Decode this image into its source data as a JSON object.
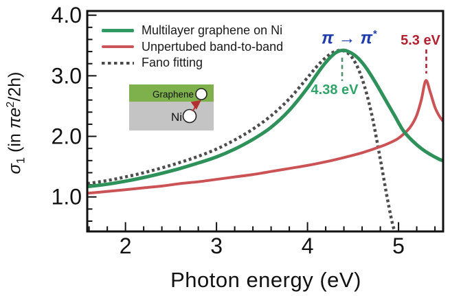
{
  "figure": {
    "background": "#ffffff",
    "frame_color": "#111111",
    "tick_color": "#111111",
    "text_color": "#111111"
  },
  "chart_data": {
    "type": "line",
    "title": "",
    "xlabel": "Photon energy (eV)",
    "ylabel": "σ1 (in πe2/2h)",
    "ylabel_parts": {
      "sigma": "σ",
      "sub": "1",
      "mid": " (in ",
      "pie": "πe",
      "sup": "2",
      "suffix": "/2h)"
    },
    "xlim": [
      1.58,
      5.49
    ],
    "ylim": [
      0.43,
      4.07
    ],
    "grid": false,
    "legend_position": "upper-left-inside",
    "x_major_ticks": [
      2,
      3,
      4,
      5
    ],
    "x_tick_labels": [
      "2",
      "3",
      "4",
      "5"
    ],
    "x_minor_step": 0.2,
    "y_major_ticks": [
      1,
      2,
      3,
      4
    ],
    "y_tick_labels": [
      "1.0",
      "2.0",
      "3.0",
      "4.0"
    ],
    "y_minor_step": 0.2,
    "series": [
      {
        "name": "Multilayer graphene on Ni",
        "color": "#2d9159",
        "style": "solid",
        "peak": {
          "x": 4.38,
          "y": 3.42
        },
        "points": [
          [
            1.58,
            1.17
          ],
          [
            1.8,
            1.21
          ],
          [
            2.0,
            1.26
          ],
          [
            2.2,
            1.32
          ],
          [
            2.4,
            1.39
          ],
          [
            2.6,
            1.47
          ],
          [
            2.8,
            1.56
          ],
          [
            3.0,
            1.66
          ],
          [
            3.2,
            1.79
          ],
          [
            3.4,
            1.95
          ],
          [
            3.6,
            2.15
          ],
          [
            3.8,
            2.43
          ],
          [
            4.0,
            2.8
          ],
          [
            4.1,
            3.02
          ],
          [
            4.2,
            3.22
          ],
          [
            4.3,
            3.37
          ],
          [
            4.38,
            3.42
          ],
          [
            4.45,
            3.4
          ],
          [
            4.55,
            3.3
          ],
          [
            4.65,
            3.12
          ],
          [
            4.75,
            2.88
          ],
          [
            4.85,
            2.62
          ],
          [
            4.95,
            2.36
          ],
          [
            5.05,
            2.1
          ],
          [
            5.15,
            1.93
          ],
          [
            5.25,
            1.8
          ],
          [
            5.35,
            1.7
          ],
          [
            5.45,
            1.62
          ],
          [
            5.49,
            1.6
          ]
        ]
      },
      {
        "name": "Unpertubed band-to-band",
        "color": "#cb5356",
        "style": "solid",
        "peak": {
          "x": 5.3,
          "y": 2.92
        },
        "points": [
          [
            1.58,
            1.06
          ],
          [
            1.8,
            1.09
          ],
          [
            2.0,
            1.12
          ],
          [
            2.2,
            1.15
          ],
          [
            2.4,
            1.18
          ],
          [
            2.6,
            1.22
          ],
          [
            2.8,
            1.25
          ],
          [
            3.0,
            1.29
          ],
          [
            3.2,
            1.33
          ],
          [
            3.4,
            1.37
          ],
          [
            3.6,
            1.42
          ],
          [
            3.8,
            1.47
          ],
          [
            4.0,
            1.52
          ],
          [
            4.2,
            1.58
          ],
          [
            4.4,
            1.65
          ],
          [
            4.6,
            1.73
          ],
          [
            4.8,
            1.83
          ],
          [
            4.9,
            1.89
          ],
          [
            5.0,
            1.97
          ],
          [
            5.1,
            2.1
          ],
          [
            5.15,
            2.2
          ],
          [
            5.2,
            2.35
          ],
          [
            5.25,
            2.6
          ],
          [
            5.3,
            2.92
          ],
          [
            5.35,
            2.72
          ],
          [
            5.4,
            2.48
          ],
          [
            5.45,
            2.33
          ],
          [
            5.49,
            2.25
          ]
        ]
      },
      {
        "name": "Fano fitting",
        "color": "#4d4d4d",
        "style": "dotted",
        "points": [
          [
            1.58,
            1.22
          ],
          [
            1.8,
            1.27
          ],
          [
            2.0,
            1.33
          ],
          [
            2.2,
            1.4
          ],
          [
            2.4,
            1.48
          ],
          [
            2.6,
            1.57
          ],
          [
            2.8,
            1.67
          ],
          [
            3.0,
            1.79
          ],
          [
            3.2,
            1.94
          ],
          [
            3.4,
            2.12
          ],
          [
            3.6,
            2.34
          ],
          [
            3.8,
            2.62
          ],
          [
            4.0,
            2.97
          ],
          [
            4.1,
            3.15
          ],
          [
            4.2,
            3.3
          ],
          [
            4.3,
            3.4
          ],
          [
            4.4,
            3.41
          ],
          [
            4.5,
            3.28
          ],
          [
            4.6,
            2.95
          ],
          [
            4.7,
            2.4
          ],
          [
            4.8,
            1.62
          ],
          [
            4.88,
            0.95
          ],
          [
            4.94,
            0.52
          ],
          [
            4.97,
            0.43
          ]
        ]
      }
    ],
    "annotations": [
      {
        "id": "pi-transition",
        "text": "π → π*",
        "main": "π → π",
        "sup": "*",
        "color": "#1f3daa",
        "x": 4.46,
        "y": 3.6
      },
      {
        "id": "green-peak-energy",
        "text": "4.38 eV",
        "color": "#2fa368",
        "x": 4.3,
        "y": 2.77
      },
      {
        "id": "red-peak-energy",
        "text": "5.3 eV",
        "color": "#b3202f",
        "x": 5.24,
        "y": 3.57
      }
    ]
  },
  "legend": {
    "items": [
      {
        "label": "Multilayer graphene on Ni",
        "color": "#2f9961",
        "style": "solid"
      },
      {
        "label": "Unpertubed band-to-band",
        "color": "#c9555a",
        "style": "solid"
      },
      {
        "label": "Fano fitting",
        "color": "#4a4a4a",
        "style": "dashed"
      }
    ]
  },
  "inset": {
    "layers": [
      {
        "label": "Graphene",
        "color": "#7eb04b"
      },
      {
        "label": "Ni",
        "color": "#c4c4c5"
      }
    ],
    "arrow_color": "#b23030"
  }
}
